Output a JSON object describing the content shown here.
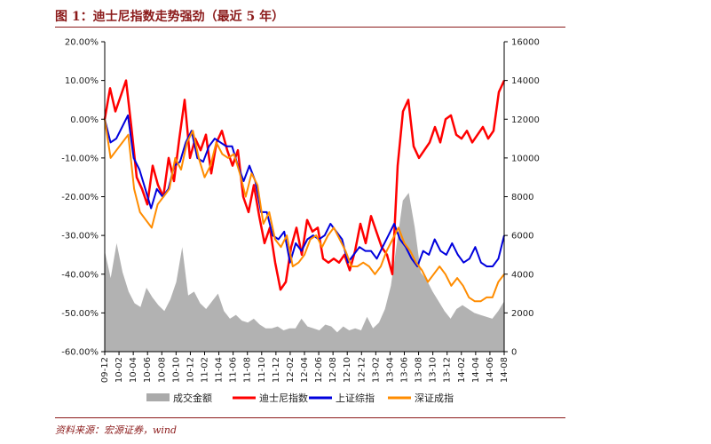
{
  "figure": {
    "title": "图 1：迪士尼指数走势强劲（最近 5 年）",
    "source": "资料来源：宏源证券，wind"
  },
  "colors": {
    "brand": "#8b1a1a",
    "volume": "#aaaaaa",
    "disney": "#ff0000",
    "shanghai": "#0000dd",
    "shenzhen": "#ff8c00"
  },
  "chart_data": {
    "type": "line",
    "title": "",
    "xlabel": "",
    "ylabel_left": "",
    "ylabel_right": "",
    "y_left_range": [
      -60,
      20
    ],
    "y_left_ticks": [
      "20.00%",
      "10.00%",
      "0.00%",
      "-10.00%",
      "-20.00%",
      "-30.00%",
      "-40.00%",
      "-50.00%",
      "-60.00%"
    ],
    "y_right_range": [
      0,
      16000
    ],
    "y_right_ticks": [
      "16000",
      "14000",
      "12000",
      "10000",
      "8000",
      "6000",
      "4000",
      "2000",
      "0"
    ],
    "x_ticks": [
      "09-12",
      "10-02",
      "10-04",
      "10-06",
      "10-08",
      "10-10",
      "10-12",
      "11-02",
      "11-04",
      "11-06",
      "11-08",
      "11-10",
      "11-12",
      "12-02",
      "12-04",
      "12-06",
      "12-08",
      "12-10",
      "12-12",
      "13-02",
      "13-04",
      "13-06",
      "13-08",
      "13-10",
      "13-12",
      "14-02",
      "14-04",
      "14-06",
      "14-08"
    ],
    "legend_position": "bottom",
    "series": [
      {
        "name": "成交金额",
        "axis": "right",
        "kind": "area",
        "values": [
          5200,
          3800,
          5600,
          4100,
          3100,
          2500,
          2300,
          3300,
          2800,
          2400,
          2100,
          2700,
          3600,
          5400,
          2900,
          3100,
          2500,
          2200,
          2600,
          3000,
          2100,
          1700,
          1900,
          1600,
          1500,
          1700,
          1400,
          1200,
          1200,
          1300,
          1100,
          1200,
          1200,
          1700,
          1300,
          1200,
          1100,
          1400,
          1300,
          1000,
          1300,
          1100,
          1200,
          1100,
          1800,
          1200,
          1500,
          2200,
          3400,
          5600,
          7800,
          8200,
          6400,
          4100,
          3700,
          3100,
          2600,
          2100,
          1700,
          2200,
          2400,
          2200,
          2000,
          1900,
          1800,
          1700,
          2100,
          2600
        ]
      },
      {
        "name": "迪士尼指数",
        "axis": "left",
        "kind": "line",
        "values": [
          0,
          8,
          2,
          6,
          10,
          -2,
          -15,
          -18,
          -22,
          -12,
          -17,
          -20,
          -10,
          -16,
          -5,
          5,
          -10,
          -5,
          -8,
          -4,
          -14,
          -6,
          -3,
          -8,
          -12,
          -8,
          -20,
          -24,
          -17,
          -25,
          -32,
          -28,
          -37,
          -44,
          -42,
          -33,
          -28,
          -35,
          -26,
          -29,
          -28,
          -36,
          -37,
          -36,
          -37,
          -35,
          -39,
          -34,
          -27,
          -32,
          -25,
          -29,
          -33,
          -35,
          -40,
          -12,
          2,
          5,
          -7,
          -10,
          -8,
          -6,
          -2,
          -6,
          0,
          1,
          -4,
          -5,
          -3,
          -6,
          -4,
          -2,
          -5,
          -3,
          7,
          10
        ]
      },
      {
        "name": "上证综指",
        "axis": "left",
        "kind": "line",
        "values": [
          0,
          -6,
          -5,
          -2,
          1,
          -10,
          -13,
          -18,
          -23,
          -18,
          -20,
          -18,
          -12,
          -11,
          -6,
          -3,
          -10,
          -11,
          -7,
          -5,
          -6,
          -7,
          -7,
          -12,
          -16,
          -12,
          -16,
          -24,
          -24,
          -30,
          -31,
          -29,
          -37,
          -32,
          -34,
          -31,
          -30,
          -31,
          -30,
          -27,
          -29,
          -31,
          -37,
          -35,
          -33,
          -34,
          -34,
          -36,
          -33,
          -30,
          -27,
          -31,
          -33,
          -36,
          -38,
          -34,
          -35,
          -31,
          -34,
          -35,
          -32,
          -35,
          -37,
          -36,
          -33,
          -37,
          -38,
          -38,
          -36,
          -30
        ]
      },
      {
        "name": "深证成指",
        "axis": "left",
        "kind": "line",
        "values": [
          0,
          -10,
          -8,
          -6,
          -4,
          -18,
          -24,
          -26,
          -28,
          -22,
          -20,
          -18,
          -10,
          -13,
          -6,
          -3,
          -10,
          -15,
          -12,
          -6,
          -9,
          -10,
          -9,
          -14,
          -20,
          -14,
          -17,
          -27,
          -24,
          -31,
          -33,
          -30,
          -38,
          -37,
          -35,
          -31,
          -30,
          -33,
          -30,
          -28,
          -31,
          -34,
          -38,
          -38,
          -37,
          -38,
          -40,
          -38,
          -34,
          -31,
          -28,
          -32,
          -34,
          -37,
          -39,
          -42,
          -40,
          -38,
          -40,
          -43,
          -41,
          -43,
          -46,
          -47,
          -47,
          -46,
          -46,
          -42,
          -40
        ]
      }
    ]
  }
}
